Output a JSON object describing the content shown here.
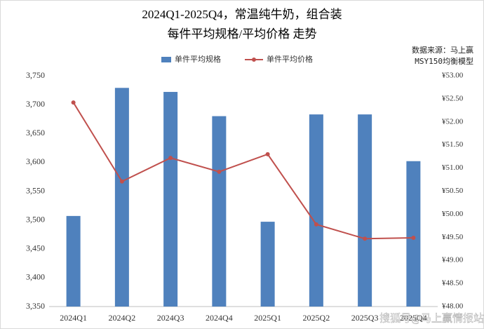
{
  "chart_data": {
    "type": "combo",
    "title": "2024Q1-2025Q4，常温纯牛奶，组合装",
    "subtitle": "每件平均规格/平均价格 走势",
    "source": "数据来源：马上赢",
    "model": "MSY150均衡模型",
    "watermark": "搜狐号@马上赢情报站",
    "categories": [
      "2024Q1",
      "2024Q2",
      "2024Q3",
      "2024Q4",
      "2025Q1",
      "2025Q2",
      "2025Q3",
      "2025Q4"
    ],
    "series": [
      {
        "name": "单件平均规格",
        "type": "bar",
        "color": "#4f81bd",
        "values": [
          3507,
          3729,
          3722,
          3680,
          3497,
          3683,
          3683,
          3602
        ]
      },
      {
        "name": "单件平均价格",
        "type": "line",
        "axis": "y2",
        "color": "#c0504d",
        "values": [
          52.42,
          50.71,
          51.22,
          50.92,
          51.3,
          49.78,
          49.47,
          49.49
        ]
      }
    ],
    "ylim": [
      3350,
      3750
    ],
    "yticks": [
      {
        "value": 3350,
        "label": "3,350"
      },
      {
        "value": 3400,
        "label": "3,400"
      },
      {
        "value": 3450,
        "label": "3,450"
      },
      {
        "value": 3500,
        "label": "3,500"
      },
      {
        "value": 3550,
        "label": "3,550"
      },
      {
        "value": 3600,
        "label": "3,600"
      },
      {
        "value": 3650,
        "label": "3,650"
      },
      {
        "value": 3700,
        "label": "3,700"
      },
      {
        "value": 3750,
        "label": "3,750"
      }
    ],
    "y2lim": [
      48,
      53
    ],
    "y2ticks": [
      {
        "value": 48,
        "label": "¥48.00"
      },
      {
        "value": 48.5,
        "label": "¥48.50"
      },
      {
        "value": 49,
        "label": "¥49.00"
      },
      {
        "value": 49.5,
        "label": "¥49.50"
      },
      {
        "value": 50,
        "label": "¥50.00"
      },
      {
        "value": 50.5,
        "label": "¥50.50"
      },
      {
        "value": 51,
        "label": "¥51.00"
      },
      {
        "value": 51.5,
        "label": "¥51.50"
      },
      {
        "value": 52,
        "label": "¥52.00"
      },
      {
        "value": 52.5,
        "label": "¥52.50"
      },
      {
        "value": 53,
        "label": "¥53.00"
      }
    ],
    "grid": false
  }
}
